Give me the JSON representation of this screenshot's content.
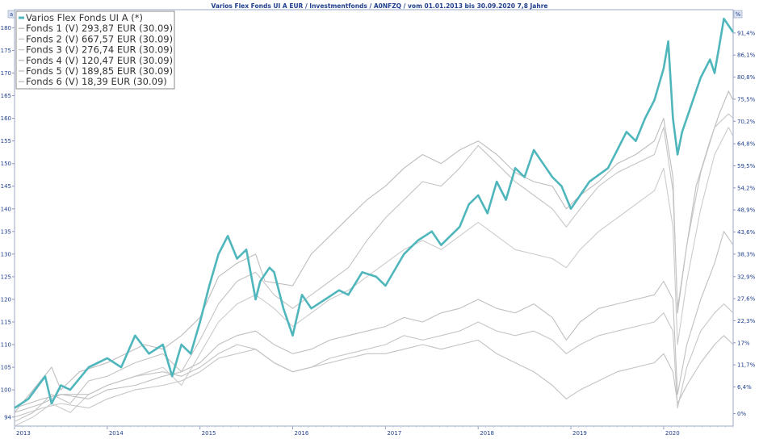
{
  "chart_data": {
    "type": "line",
    "title": "Varios Flex Fonds UI A EUR / Investmentfonds / A0NFZQ / vom 01.01.2013 bis 30.09.2020 7,8 Jahre",
    "corner_left": "a",
    "corner_right": "%",
    "xlim": [
      2013.0,
      2020.75
    ],
    "ylim_left": [
      92,
      184
    ],
    "ylim_right": [
      -3.0,
      97.0
    ],
    "x_ticks": [
      {
        "value": 2013.0,
        "label": "2013"
      },
      {
        "value": 2014.0,
        "label": "2014"
      },
      {
        "value": 2015.0,
        "label": "2015"
      },
      {
        "value": 2016.0,
        "label": "2016"
      },
      {
        "value": 2017.0,
        "label": "2017"
      },
      {
        "value": 2018.0,
        "label": "2018"
      },
      {
        "value": 2019.0,
        "label": "2019"
      },
      {
        "value": 2020.0,
        "label": "2020"
      }
    ],
    "y_ticks_left": [
      {
        "value": 94,
        "label": "94"
      },
      {
        "value": 100,
        "label": "100"
      },
      {
        "value": 105,
        "label": "105"
      },
      {
        "value": 110,
        "label": "110"
      },
      {
        "value": 115,
        "label": "115"
      },
      {
        "value": 120,
        "label": "120"
      },
      {
        "value": 125,
        "label": "125"
      },
      {
        "value": 130,
        "label": "130"
      },
      {
        "value": 135,
        "label": "135"
      },
      {
        "value": 140,
        "label": "140"
      },
      {
        "value": 145,
        "label": "145"
      },
      {
        "value": 150,
        "label": "150"
      },
      {
        "value": 155,
        "label": "155"
      },
      {
        "value": 160,
        "label": "160"
      },
      {
        "value": 165,
        "label": "165"
      },
      {
        "value": 170,
        "label": "170"
      },
      {
        "value": 175,
        "label": "175"
      },
      {
        "value": 180,
        "label": "180"
      }
    ],
    "y_ticks_right": [
      {
        "value": 0.0,
        "label": "0%"
      },
      {
        "value": 6.4,
        "label": "6,4%"
      },
      {
        "value": 11.7,
        "label": "11,7%"
      },
      {
        "value": 17.0,
        "label": "17%"
      },
      {
        "value": 22.3,
        "label": "22,3%"
      },
      {
        "value": 27.6,
        "label": "27,6%"
      },
      {
        "value": 32.9,
        "label": "32,9%"
      },
      {
        "value": 38.3,
        "label": "38,3%"
      },
      {
        "value": 43.6,
        "label": "43,6%"
      },
      {
        "value": 48.9,
        "label": "48,9%"
      },
      {
        "value": 54.2,
        "label": "54,2%"
      },
      {
        "value": 59.5,
        "label": "59,5%"
      },
      {
        "value": 64.8,
        "label": "64,8%"
      },
      {
        "value": 70.2,
        "label": "70,2%"
      },
      {
        "value": 75.5,
        "label": "75,5%"
      },
      {
        "value": 80.8,
        "label": "80,8%"
      },
      {
        "value": 86.1,
        "label": "86,1%"
      },
      {
        "value": 91.4,
        "label": "91,4%"
      }
    ],
    "legend_position": "top-left",
    "series": [
      {
        "name": "Varios Flex Fonds UI A (*)",
        "color": "#4fb6bc",
        "width": 2.6,
        "x": [
          2013.0,
          2013.15,
          2013.33,
          2013.4,
          2013.5,
          2013.6,
          2013.8,
          2014.0,
          2014.15,
          2014.3,
          2014.45,
          2014.6,
          2014.7,
          2014.8,
          2014.9,
          2015.0,
          2015.1,
          2015.2,
          2015.3,
          2015.4,
          2015.5,
          2015.6,
          2015.65,
          2015.75,
          2015.8,
          2015.9,
          2016.0,
          2016.1,
          2016.2,
          2016.35,
          2016.5,
          2016.6,
          2016.75,
          2016.9,
          2017.0,
          2017.2,
          2017.35,
          2017.5,
          2017.6,
          2017.7,
          2017.8,
          2017.9,
          2018.0,
          2018.1,
          2018.2,
          2018.3,
          2018.4,
          2018.5,
          2018.6,
          2018.7,
          2018.8,
          2018.9,
          2019.0,
          2019.2,
          2019.4,
          2019.5,
          2019.6,
          2019.7,
          2019.8,
          2019.9,
          2020.0,
          2020.05,
          2020.1,
          2020.15,
          2020.2,
          2020.3,
          2020.4,
          2020.5,
          2020.55,
          2020.6,
          2020.65,
          2020.75
        ],
        "y": [
          96,
          98,
          103,
          97,
          101,
          100,
          105,
          107,
          105,
          112,
          108,
          110,
          103,
          110,
          108,
          115,
          123,
          130,
          134,
          129,
          131,
          120,
          124,
          127,
          126,
          118,
          112,
          121,
          118,
          120,
          122,
          121,
          126,
          125,
          123,
          130,
          133,
          135,
          132,
          134,
          136,
          141,
          143,
          139,
          146,
          142,
          149,
          147,
          153,
          150,
          147,
          145,
          140,
          146,
          149,
          153,
          157,
          155,
          160,
          164,
          171,
          177,
          160,
          152,
          157,
          163,
          169,
          173,
          170,
          176,
          182,
          179
        ]
      },
      {
        "name": "Fonds 1 (V) 293,87 EUR (30.09)",
        "color": "#bdbdbd",
        "width": 1.1,
        "x": [
          2013.0,
          2013.2,
          2013.4,
          2013.5,
          2013.7,
          2014.0,
          2014.2,
          2014.4,
          2014.6,
          2014.8,
          2015.0,
          2015.2,
          2015.4,
          2015.6,
          2015.7,
          2016.0,
          2016.2,
          2016.5,
          2016.8,
          2017.0,
          2017.2,
          2017.4,
          2017.6,
          2017.8,
          2018.0,
          2018.2,
          2018.4,
          2018.6,
          2018.8,
          2018.95,
          2019.1,
          2019.3,
          2019.5,
          2019.7,
          2019.9,
          2020.0,
          2020.1,
          2020.15,
          2020.25,
          2020.35,
          2020.5,
          2020.6,
          2020.7,
          2020.75
        ],
        "y": [
          95,
          100,
          105,
          100,
          104,
          106,
          108,
          110,
          109,
          112,
          116,
          125,
          128,
          130,
          124,
          123,
          130,
          136,
          142,
          145,
          149,
          152,
          150,
          153,
          155,
          152,
          148,
          146,
          145,
          140,
          143,
          146,
          150,
          152,
          155,
          160,
          147,
          117,
          132,
          145,
          155,
          161,
          166,
          164
        ]
      },
      {
        "name": "Fonds 2 (V) 667,57 EUR (30.09)",
        "color": "#c4c4c4",
        "width": 1.1,
        "x": [
          2013.0,
          2013.2,
          2013.4,
          2013.6,
          2013.8,
          2014.0,
          2014.3,
          2014.6,
          2014.8,
          2015.0,
          2015.2,
          2015.4,
          2015.6,
          2015.8,
          2016.0,
          2016.2,
          2016.4,
          2016.6,
          2016.8,
          2017.0,
          2017.2,
          2017.4,
          2017.6,
          2017.8,
          2018.0,
          2018.2,
          2018.4,
          2018.6,
          2018.8,
          2018.95,
          2019.1,
          2019.3,
          2019.5,
          2019.7,
          2019.9,
          2020.0,
          2020.1,
          2020.15,
          2020.25,
          2020.4,
          2020.55,
          2020.7,
          2020.75
        ],
        "y": [
          93,
          95,
          99,
          97,
          102,
          103,
          106,
          108,
          104,
          111,
          119,
          124,
          126,
          121,
          118,
          121,
          124,
          127,
          133,
          138,
          142,
          146,
          145,
          149,
          154,
          150,
          146,
          143,
          140,
          136,
          140,
          145,
          148,
          150,
          152,
          158,
          144,
          118,
          132,
          148,
          158,
          161,
          160
        ]
      },
      {
        "name": "Fonds 3 (V) 276,74 EUR (30.09)",
        "color": "#cbcbcb",
        "width": 1.1,
        "x": [
          2013.0,
          2013.2,
          2013.4,
          2013.6,
          2013.8,
          2014.0,
          2014.3,
          2014.6,
          2014.8,
          2015.0,
          2015.2,
          2015.4,
          2015.6,
          2015.8,
          2016.0,
          2016.2,
          2016.4,
          2016.6,
          2016.8,
          2017.0,
          2017.2,
          2017.4,
          2017.6,
          2017.8,
          2018.0,
          2018.2,
          2018.4,
          2018.6,
          2018.8,
          2018.95,
          2019.1,
          2019.3,
          2019.5,
          2019.7,
          2019.9,
          2020.0,
          2020.1,
          2020.15,
          2020.25,
          2020.4,
          2020.55,
          2020.7,
          2020.75
        ],
        "y": [
          92,
          94,
          97,
          95,
          99,
          101,
          103,
          105,
          101,
          108,
          115,
          119,
          121,
          118,
          114,
          117,
          120,
          122,
          125,
          128,
          131,
          133,
          131,
          134,
          137,
          134,
          131,
          130,
          129,
          127,
          131,
          135,
          138,
          141,
          144,
          149,
          136,
          110,
          124,
          140,
          152,
          158,
          156
        ]
      },
      {
        "name": "Fonds 4 (V) 120,47 EUR (30.09)",
        "color": "#c0c0c0",
        "width": 1.1,
        "x": [
          2013.0,
          2013.3,
          2013.5,
          2013.8,
          2014.0,
          2014.3,
          2014.6,
          2014.8,
          2015.0,
          2015.2,
          2015.4,
          2015.6,
          2015.8,
          2016.0,
          2016.2,
          2016.4,
          2016.6,
          2016.8,
          2017.0,
          2017.2,
          2017.4,
          2017.6,
          2017.8,
          2018.0,
          2018.2,
          2018.4,
          2018.6,
          2018.8,
          2018.95,
          2019.1,
          2019.3,
          2019.5,
          2019.7,
          2019.9,
          2020.0,
          2020.1,
          2020.15,
          2020.25,
          2020.4,
          2020.55,
          2020.65,
          2020.75
        ],
        "y": [
          95,
          97,
          99,
          98,
          100,
          101,
          103,
          104,
          106,
          110,
          112,
          113,
          110,
          108,
          109,
          111,
          112,
          113,
          114,
          116,
          115,
          117,
          118,
          120,
          118,
          117,
          119,
          116,
          111,
          115,
          118,
          119,
          120,
          121,
          124,
          120,
          99,
          110,
          120,
          128,
          135,
          132
        ]
      },
      {
        "name": "Fonds 5 (V) 189,85 EUR (30.09)",
        "color": "#c6c6c6",
        "width": 1.1,
        "x": [
          2013.0,
          2013.3,
          2013.5,
          2013.8,
          2014.0,
          2014.3,
          2014.6,
          2014.8,
          2015.0,
          2015.2,
          2015.4,
          2015.6,
          2015.8,
          2016.0,
          2016.2,
          2016.4,
          2016.6,
          2016.8,
          2017.0,
          2017.2,
          2017.4,
          2017.6,
          2017.8,
          2018.0,
          2018.2,
          2018.4,
          2018.6,
          2018.8,
          2018.95,
          2019.1,
          2019.3,
          2019.5,
          2019.7,
          2019.9,
          2020.0,
          2020.1,
          2020.15,
          2020.25,
          2020.4,
          2020.55,
          2020.65,
          2020.75
        ],
        "y": [
          94,
          96,
          97,
          96,
          98,
          100,
          101,
          102,
          104,
          107,
          108,
          109,
          106,
          104,
          105,
          107,
          108,
          109,
          110,
          112,
          111,
          112,
          113,
          115,
          113,
          112,
          113,
          111,
          108,
          110,
          112,
          113,
          114,
          115,
          117,
          113,
          96,
          105,
          113,
          117,
          119,
          117
        ]
      },
      {
        "name": "Fonds 6 (V) 18,39 EUR (30.09)",
        "color": "#c2c2c2",
        "width": 1.1,
        "x": [
          2013.0,
          2013.3,
          2013.5,
          2013.8,
          2014.0,
          2014.3,
          2014.6,
          2014.8,
          2015.0,
          2015.2,
          2015.4,
          2015.6,
          2015.8,
          2016.0,
          2016.2,
          2016.4,
          2016.6,
          2016.8,
          2017.0,
          2017.2,
          2017.4,
          2017.6,
          2017.8,
          2018.0,
          2018.2,
          2018.4,
          2018.6,
          2018.8,
          2018.95,
          2019.1,
          2019.3,
          2019.5,
          2019.7,
          2019.9,
          2020.0,
          2020.1,
          2020.15,
          2020.25,
          2020.4,
          2020.55,
          2020.65,
          2020.75
        ],
        "y": [
          96,
          98,
          99,
          99,
          101,
          103,
          104,
          103,
          105,
          108,
          110,
          109,
          106,
          104,
          105,
          106,
          107,
          108,
          108,
          109,
          110,
          109,
          110,
          111,
          108,
          106,
          104,
          101,
          98,
          100,
          102,
          104,
          105,
          106,
          108,
          104,
          97,
          101,
          106,
          110,
          112,
          110
        ]
      }
    ]
  }
}
